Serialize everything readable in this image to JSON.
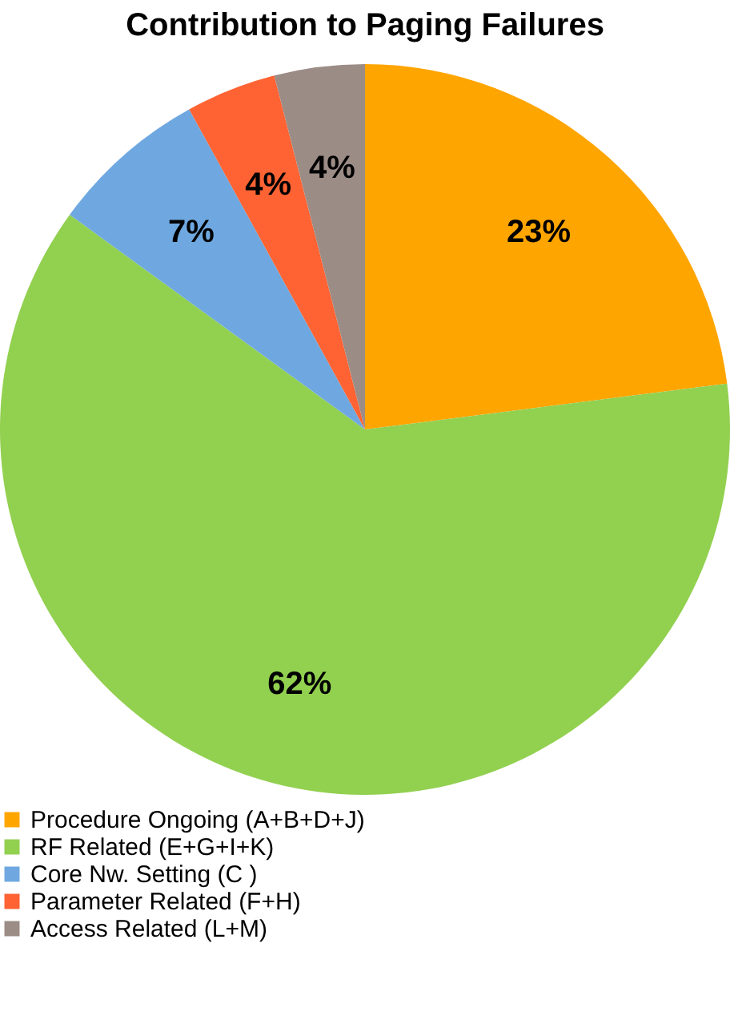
{
  "chart_data": {
    "type": "pie",
    "title": "Contribution to Paging Failures",
    "categories": [
      "Procedure Ongoing (A+B+D+J)",
      "RF Related (E+G+I+K)",
      "Core Nw. Setting   (C )",
      "Parameter Related (F+H)",
      "Access Related (L+M)"
    ],
    "values": [
      23,
      62,
      7,
      4,
      4
    ],
    "colors": [
      "#ffa500",
      "#92d050",
      "#6fa8e0",
      "#ff6333",
      "#9c8c86"
    ],
    "value_labels": [
      "23%",
      "62%",
      "7%",
      "4%",
      "4%"
    ],
    "legend": "bottom"
  }
}
